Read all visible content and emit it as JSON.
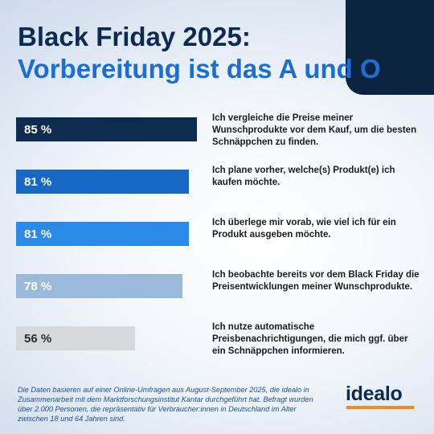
{
  "header": {
    "title_line1": "Black Friday 2025:",
    "title_line2": "Vorbereitung ist das A und O"
  },
  "chart_data": {
    "type": "bar",
    "orientation": "horizontal",
    "ylim": [
      0,
      100
    ],
    "categories": [
      "Ich vergleiche die Preise meiner Wunschprodukte vor dem Kauf, um die besten Schnäppchen zu finden.",
      "Ich plane vorher, welche(s) Produkt(e) ich kaufen möchte.",
      "Ich überlege mir vorab, wie viel ich für ein Produkt ausgeben möchte.",
      "Ich beobachte bereits vor dem Black Friday die Preisentwicklungen meiner Wunschprodukte.",
      "Ich nutze automatische Preisbenachrichtigungen, die mich ggf. über ein Schnäppchen informieren."
    ],
    "values": [
      85,
      81,
      81,
      78,
      56
    ],
    "value_labels": [
      "85 %",
      "81 %",
      "81 %",
      "78 %",
      "56 %"
    ],
    "colors": [
      "#0d2a4f",
      "#1668c4",
      "#2b8ae6",
      "#9bb9da",
      "#d6d8db"
    ]
  },
  "footnote": "Die Daten basieren auf einer Online-Umfragen aus August-September 2025, die idealo in Zusammenarbeit mit dem Marktforschungsinstitut Kantar durchgeführt hat. Befragt wurden über 2.000 Personen, die repräsentativ für Verbraucher:innen in Deutschland im Alter zwischen 18 und 64 Jahren sind.",
  "logo": "idealo"
}
